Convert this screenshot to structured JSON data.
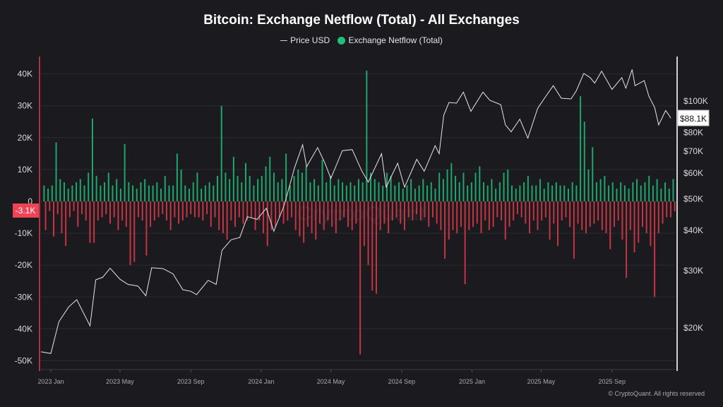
{
  "colors": {
    "background": "#1b1a1f",
    "positive": "#1fbf7a",
    "negative": "#e23b4a",
    "price": "#e6e6ea",
    "grid": "#2a2a30"
  },
  "chart_data": {
    "type": "bar",
    "title": "Bitcoin: Exchange Netflow (Total) - All Exchanges",
    "legend": [
      "Price USD",
      "Exchange Netflow (Total)"
    ],
    "legend_placement": "top",
    "grid": true,
    "y_left": {
      "ticks": [
        "40K",
        "30K",
        "20K",
        "10K",
        "0",
        "-10K",
        "-20K",
        "-30K",
        "-40K",
        "-50K"
      ],
      "tick_values": [
        40,
        30,
        20,
        10,
        0,
        -10,
        -20,
        -30,
        -40,
        -50
      ],
      "range": [
        -52,
        44
      ],
      "units": "K BTC"
    },
    "y_right": {
      "scale": "log",
      "ticks": [
        "$100K",
        "$80K",
        "$70K",
        "$60K",
        "$50K",
        "$40K",
        "$30K",
        "$20K"
      ],
      "tick_values": [
        100,
        80,
        70,
        60,
        50,
        40,
        30,
        20
      ],
      "units": "K USD"
    },
    "x_ticks": [
      {
        "label": "2023 Jan",
        "date": "2023-01-01"
      },
      {
        "label": "2023 May",
        "date": "2023-05-01"
      },
      {
        "label": "2023 Sep",
        "date": "2023-09-01"
      },
      {
        "label": "2024 Jan",
        "date": "2024-01-01"
      },
      {
        "label": "2024 May",
        "date": "2024-05-01"
      },
      {
        "label": "2024 Sep",
        "date": "2024-09-01"
      },
      {
        "label": "2025 Jan",
        "date": "2025-01-01"
      },
      {
        "label": "2025 May",
        "date": "2025-05-01"
      },
      {
        "label": "2025 Sep",
        "date": "2025-09-01"
      }
    ],
    "last_netflow_label": "-3.1K",
    "last_price_label": "$88.1K",
    "netflow_weekly_extremes": [
      [
        "2022-12-19",
        5,
        -9
      ],
      [
        "2022-12-26",
        4,
        -3
      ],
      [
        "2023-01-02",
        5,
        -11
      ],
      [
        "2023-01-09",
        18.5,
        -4
      ],
      [
        "2023-01-16",
        7,
        -10
      ],
      [
        "2023-01-23",
        6,
        -14
      ],
      [
        "2023-01-30",
        4,
        -5
      ],
      [
        "2023-02-06",
        5,
        -3
      ],
      [
        "2023-02-13",
        6,
        -8
      ],
      [
        "2023-02-20",
        7,
        -4
      ],
      [
        "2023-02-27",
        5,
        -6
      ],
      [
        "2023-03-06",
        9,
        -13
      ],
      [
        "2023-03-13",
        26,
        -13
      ],
      [
        "2023-03-20",
        8,
        -6
      ],
      [
        "2023-03-27",
        5,
        -5
      ],
      [
        "2023-04-03",
        6,
        -4
      ],
      [
        "2023-04-10",
        9,
        -7
      ],
      [
        "2023-04-17",
        5,
        -5
      ],
      [
        "2023-04-24",
        7,
        -9
      ],
      [
        "2023-05-01",
        4,
        -6
      ],
      [
        "2023-05-08",
        18,
        -8
      ],
      [
        "2023-05-15",
        6,
        -20
      ],
      [
        "2023-05-22",
        5,
        -19
      ],
      [
        "2023-05-29",
        4,
        -5
      ],
      [
        "2023-06-05",
        6,
        -6
      ],
      [
        "2023-06-12",
        7,
        -17
      ],
      [
        "2023-06-19",
        5,
        -8
      ],
      [
        "2023-06-26",
        5,
        -6
      ],
      [
        "2023-07-03",
        6,
        -5
      ],
      [
        "2023-07-10",
        4,
        -4
      ],
      [
        "2023-07-17",
        8,
        -6
      ],
      [
        "2023-07-24",
        5,
        -9
      ],
      [
        "2023-07-31",
        5,
        -5
      ],
      [
        "2023-08-07",
        15,
        -7
      ],
      [
        "2023-08-14",
        10,
        -6
      ],
      [
        "2023-08-21",
        5,
        -5
      ],
      [
        "2023-08-28",
        4,
        -4
      ],
      [
        "2023-09-04",
        6,
        -5
      ],
      [
        "2023-09-11",
        9,
        -5
      ],
      [
        "2023-09-18",
        4,
        -6
      ],
      [
        "2023-09-25",
        5,
        -4
      ],
      [
        "2023-10-02",
        6,
        -8
      ],
      [
        "2023-10-09",
        5,
        -5
      ],
      [
        "2023-10-16",
        8,
        -9
      ],
      [
        "2023-10-23",
        30,
        -10
      ],
      [
        "2023-10-30",
        9,
        -12
      ],
      [
        "2023-11-06",
        7,
        -6
      ],
      [
        "2023-11-13",
        14,
        -8
      ],
      [
        "2023-11-20",
        8,
        -5
      ],
      [
        "2023-11-27",
        6,
        -7
      ],
      [
        "2023-12-04",
        12,
        -6
      ],
      [
        "2023-12-11",
        8,
        -5
      ],
      [
        "2023-12-18",
        5,
        -9
      ],
      [
        "2023-12-25",
        7,
        -6
      ],
      [
        "2024-01-01",
        8,
        -10
      ],
      [
        "2024-01-08",
        11,
        -14
      ],
      [
        "2024-01-15",
        14,
        -9
      ],
      [
        "2024-01-22",
        9,
        -8
      ],
      [
        "2024-01-29",
        6,
        -5
      ],
      [
        "2024-02-05",
        7,
        -7
      ],
      [
        "2024-02-12",
        15,
        -6
      ],
      [
        "2024-02-19",
        5,
        -5
      ],
      [
        "2024-02-26",
        8,
        -9
      ],
      [
        "2024-03-04",
        10,
        -11
      ],
      [
        "2024-03-11",
        9,
        -13
      ],
      [
        "2024-03-18",
        11,
        -8
      ],
      [
        "2024-03-25",
        6,
        -10
      ],
      [
        "2024-04-01",
        7,
        -12
      ],
      [
        "2024-04-08",
        5,
        -7
      ],
      [
        "2024-04-15",
        13,
        -9
      ],
      [
        "2024-04-22",
        6,
        -6
      ],
      [
        "2024-04-29",
        8,
        -8
      ],
      [
        "2024-05-06",
        5,
        -10
      ],
      [
        "2024-05-13",
        7,
        -6
      ],
      [
        "2024-05-20",
        6,
        -5
      ],
      [
        "2024-05-27",
        5,
        -8
      ],
      [
        "2024-06-03",
        6,
        -9
      ],
      [
        "2024-06-10",
        5,
        -7
      ],
      [
        "2024-06-17",
        7,
        -48
      ],
      [
        "2024-06-24",
        6,
        -14
      ],
      [
        "2024-07-01",
        41,
        -20
      ],
      [
        "2024-07-08",
        9,
        -28
      ],
      [
        "2024-07-15",
        7,
        -29
      ],
      [
        "2024-07-22",
        6,
        -9
      ],
      [
        "2024-07-29",
        5,
        -7
      ],
      [
        "2024-08-05",
        9,
        -10
      ],
      [
        "2024-08-12",
        8,
        -6
      ],
      [
        "2024-08-19",
        5,
        -5
      ],
      [
        "2024-08-26",
        6,
        -7
      ],
      [
        "2024-09-02",
        4,
        -9
      ],
      [
        "2024-09-09",
        5,
        -5
      ],
      [
        "2024-09-16",
        7,
        -6
      ],
      [
        "2024-09-23",
        4,
        -4
      ],
      [
        "2024-09-30",
        5,
        -6
      ],
      [
        "2024-10-07",
        7,
        -5
      ],
      [
        "2024-10-14",
        5,
        -8
      ],
      [
        "2024-10-21",
        6,
        -5
      ],
      [
        "2024-10-28",
        4,
        -7
      ],
      [
        "2024-11-04",
        9,
        -9
      ],
      [
        "2024-11-11",
        7,
        -18
      ],
      [
        "2024-11-18",
        10,
        -12
      ],
      [
        "2024-11-25",
        12,
        -9
      ],
      [
        "2024-12-02",
        8,
        -10
      ],
      [
        "2024-12-09",
        6,
        -8
      ],
      [
        "2024-12-16",
        9,
        -26
      ],
      [
        "2024-12-23",
        5,
        -9
      ],
      [
        "2024-12-30",
        6,
        -8
      ],
      [
        "2025-01-06",
        9,
        -7
      ],
      [
        "2025-01-13",
        11,
        -10
      ],
      [
        "2025-01-20",
        6,
        -6
      ],
      [
        "2025-01-27",
        5,
        -9
      ],
      [
        "2025-02-03",
        7,
        -8
      ],
      [
        "2025-02-10",
        4,
        -5
      ],
      [
        "2025-02-17",
        6,
        -6
      ],
      [
        "2025-02-24",
        9,
        -12
      ],
      [
        "2025-03-03",
        10,
        -8
      ],
      [
        "2025-03-10",
        5,
        -6
      ],
      [
        "2025-03-17",
        4,
        -4
      ],
      [
        "2025-03-24",
        5,
        -5
      ],
      [
        "2025-03-31",
        6,
        -7
      ],
      [
        "2025-04-07",
        8,
        -10
      ],
      [
        "2025-04-14",
        5,
        -6
      ],
      [
        "2025-04-21",
        5,
        -9
      ],
      [
        "2025-04-28",
        7,
        -6
      ],
      [
        "2025-05-05",
        4,
        -5
      ],
      [
        "2025-05-12",
        6,
        -12
      ],
      [
        "2025-05-19",
        5,
        -7
      ],
      [
        "2025-05-26",
        6,
        -14
      ],
      [
        "2025-06-02",
        5,
        -6
      ],
      [
        "2025-06-09",
        5,
        -5
      ],
      [
        "2025-06-16",
        4,
        -8
      ],
      [
        "2025-06-23",
        6,
        -18
      ],
      [
        "2025-06-30",
        5,
        -7
      ],
      [
        "2025-07-07",
        33,
        -9
      ],
      [
        "2025-07-14",
        25,
        -10
      ],
      [
        "2025-07-21",
        10,
        -8
      ],
      [
        "2025-07-28",
        17,
        -7
      ],
      [
        "2025-08-04",
        6,
        -6
      ],
      [
        "2025-08-11",
        7,
        -9
      ],
      [
        "2025-08-18",
        8,
        -10
      ],
      [
        "2025-08-25",
        5,
        -15
      ],
      [
        "2025-09-01",
        6,
        -8
      ],
      [
        "2025-09-08",
        4,
        -6
      ],
      [
        "2025-09-15",
        6,
        -12
      ],
      [
        "2025-09-22",
        5,
        -24
      ],
      [
        "2025-09-29",
        4,
        -9
      ],
      [
        "2025-10-06",
        6,
        -16
      ],
      [
        "2025-10-13",
        7,
        -13
      ],
      [
        "2025-10-20",
        5,
        -8
      ],
      [
        "2025-10-27",
        6,
        -10
      ],
      [
        "2025-11-03",
        8,
        -14
      ],
      [
        "2025-11-10",
        5,
        -30
      ],
      [
        "2025-11-17",
        7,
        -10
      ],
      [
        "2025-11-24",
        4,
        -7
      ],
      [
        "2025-12-01",
        6,
        -5
      ],
      [
        "2025-12-08",
        4,
        -5
      ],
      [
        "2025-12-15",
        7,
        -3.1
      ]
    ],
    "price_usd_k": [
      [
        "2022-12-15",
        16.8
      ],
      [
        "2023-01-01",
        16.6
      ],
      [
        "2023-01-15",
        20.8
      ],
      [
        "2023-02-01",
        23.1
      ],
      [
        "2023-02-15",
        24.3
      ],
      [
        "2023-03-10",
        20.2
      ],
      [
        "2023-03-20",
        28
      ],
      [
        "2023-04-01",
        28.5
      ],
      [
        "2023-04-14",
        30.4
      ],
      [
        "2023-05-01",
        28.1
      ],
      [
        "2023-05-15",
        27.1
      ],
      [
        "2023-06-01",
        26.8
      ],
      [
        "2023-06-15",
        25
      ],
      [
        "2023-06-25",
        30.5
      ],
      [
        "2023-07-15",
        30.3
      ],
      [
        "2023-08-01",
        29.2
      ],
      [
        "2023-08-18",
        26.1
      ],
      [
        "2023-09-01",
        25.8
      ],
      [
        "2023-09-11",
        25.2
      ],
      [
        "2023-10-01",
        27.9
      ],
      [
        "2023-10-15",
        27.1
      ],
      [
        "2023-10-25",
        34.5
      ],
      [
        "2023-11-10",
        37.2
      ],
      [
        "2023-11-25",
        37.8
      ],
      [
        "2023-12-08",
        43.8
      ],
      [
        "2023-12-25",
        43
      ],
      [
        "2024-01-10",
        46.5
      ],
      [
        "2024-01-23",
        39.5
      ],
      [
        "2024-02-10",
        47.5
      ],
      [
        "2024-02-28",
        62
      ],
      [
        "2024-03-13",
        73
      ],
      [
        "2024-03-20",
        62.5
      ],
      [
        "2024-04-08",
        71.5
      ],
      [
        "2024-04-20",
        64.5
      ],
      [
        "2024-05-01",
        57.5
      ],
      [
        "2024-05-21",
        70
      ],
      [
        "2024-06-07",
        70.5
      ],
      [
        "2024-06-24",
        60.5
      ],
      [
        "2024-07-05",
        56
      ],
      [
        "2024-07-28",
        68.5
      ],
      [
        "2024-08-05",
        54
      ],
      [
        "2024-08-25",
        64
      ],
      [
        "2024-09-06",
        54
      ],
      [
        "2024-09-27",
        65.8
      ],
      [
        "2024-10-10",
        60.5
      ],
      [
        "2024-10-29",
        72.5
      ],
      [
        "2024-11-05",
        68.5
      ],
      [
        "2024-11-13",
        90
      ],
      [
        "2024-11-22",
        98.5
      ],
      [
        "2024-12-05",
        98
      ],
      [
        "2024-12-17",
        106
      ],
      [
        "2024-12-30",
        92.5
      ],
      [
        "2025-01-20",
        106
      ],
      [
        "2025-02-01",
        100
      ],
      [
        "2025-02-20",
        97
      ],
      [
        "2025-02-28",
        84
      ],
      [
        "2025-03-10",
        80
      ],
      [
        "2025-03-25",
        87.5
      ],
      [
        "2025-04-08",
        76.5
      ],
      [
        "2025-04-25",
        94.5
      ],
      [
        "2025-05-10",
        103.5
      ],
      [
        "2025-05-22",
        111
      ],
      [
        "2025-06-05",
        101.5
      ],
      [
        "2025-06-22",
        101
      ],
      [
        "2025-07-01",
        107
      ],
      [
        "2025-07-14",
        121
      ],
      [
        "2025-07-25",
        117.5
      ],
      [
        "2025-08-02",
        113
      ],
      [
        "2025-08-14",
        123
      ],
      [
        "2025-09-01",
        108
      ],
      [
        "2025-09-18",
        117.5
      ],
      [
        "2025-09-25",
        109
      ],
      [
        "2025-10-06",
        124.5
      ],
      [
        "2025-10-11",
        111
      ],
      [
        "2025-10-27",
        115
      ],
      [
        "2025-11-04",
        103
      ],
      [
        "2025-11-14",
        95
      ],
      [
        "2025-11-21",
        84
      ],
      [
        "2025-12-03",
        93
      ],
      [
        "2025-12-08",
        90.5
      ],
      [
        "2025-12-12",
        88.1
      ]
    ]
  },
  "watermark": "CryptoQuant",
  "footer": "© CryptoQuant. All rights reserved"
}
